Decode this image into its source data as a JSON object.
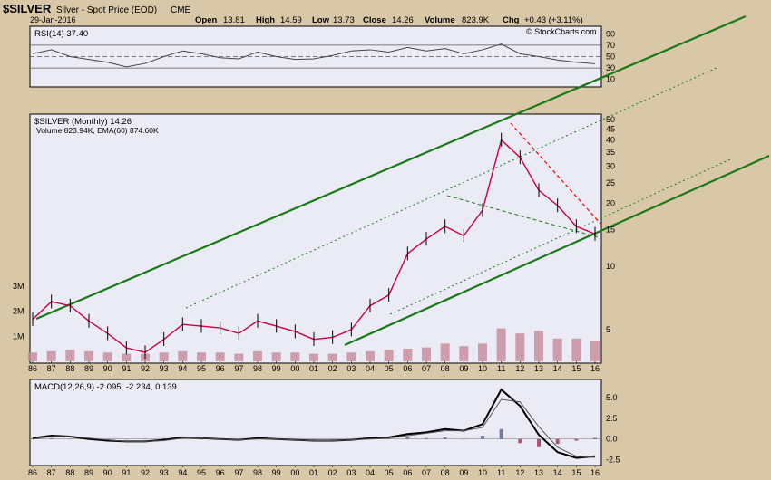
{
  "header": {
    "symbol": "$SILVER",
    "description": "Silver - Spot Price (EOD)",
    "exchange": "CME",
    "date": "29-Jan-2016",
    "open_label": "Open",
    "open": "13.81",
    "high_label": "High",
    "high": "14.59",
    "low_label": "Low",
    "low": "13.73",
    "close_label": "Close",
    "close": "14.26",
    "volume_label": "Volume",
    "volume": "823.9K",
    "chg_label": "Chg",
    "chg": "+0.43 (+3.11%)",
    "watermark": "© StockCharts.com"
  },
  "colors": {
    "panel_bg": "#ebebf5",
    "outer_bg": "#d9c8a7",
    "price_up": "#000000",
    "price_down": "#cc0044",
    "channel_green": "#1a7a1a",
    "resistance_red": "#ff0000",
    "rsi_line": "#444444",
    "macd_line": "#000000",
    "signal_line": "#555555",
    "volume_bar": "#c58a9a",
    "ema_line": "#cc3333"
  },
  "chart_data": [
    {
      "panel": "rsi",
      "type": "line",
      "title": "RSI(14) 37.40",
      "ylim": [
        0,
        100
      ],
      "yticks": [
        "90",
        "70",
        "50",
        "30",
        "10"
      ],
      "x": [
        "86",
        "87",
        "88",
        "89",
        "90",
        "91",
        "92",
        "93",
        "94",
        "95",
        "96",
        "97",
        "98",
        "99",
        "00",
        "01",
        "02",
        "03",
        "04",
        "05",
        "06",
        "07",
        "08",
        "09",
        "10",
        "11",
        "12",
        "13",
        "14",
        "15",
        "16"
      ],
      "values": [
        55,
        62,
        50,
        45,
        40,
        32,
        38,
        50,
        60,
        55,
        48,
        46,
        58,
        50,
        45,
        46,
        52,
        60,
        62,
        58,
        66,
        60,
        64,
        55,
        62,
        72,
        55,
        50,
        44,
        40,
        37.4
      ]
    },
    {
      "panel": "price",
      "type": "line",
      "title": "$SILVER (Monthly) 14.26",
      "subtitle": "Volume 823.94K, EMA(60) 874.60K",
      "scale": "log",
      "ylim": [
        3.5,
        52
      ],
      "yticks": [
        "50",
        "45",
        "40",
        "35",
        "30",
        "25",
        "20",
        "15",
        "10",
        "5"
      ],
      "volume_ticks": [
        "3M",
        "2M",
        "1M"
      ],
      "x": [
        "86",
        "87",
        "88",
        "89",
        "90",
        "91",
        "92",
        "93",
        "94",
        "95",
        "96",
        "97",
        "98",
        "99",
        "00",
        "01",
        "02",
        "03",
        "04",
        "05",
        "06",
        "07",
        "08",
        "09",
        "10",
        "11",
        "12",
        "13",
        "14",
        "15",
        "16"
      ],
      "values": [
        5.6,
        6.8,
        6.5,
        5.5,
        4.8,
        4.1,
        3.9,
        4.5,
        5.3,
        5.2,
        5.1,
        4.8,
        5.5,
        5.2,
        4.9,
        4.5,
        4.6,
        5.0,
        6.5,
        7.3,
        11.5,
        13.5,
        15.5,
        14.0,
        18.5,
        40.0,
        33.0,
        23.0,
        19.5,
        15.5,
        14.26
      ],
      "volume_values": [
        0.35,
        0.4,
        0.45,
        0.4,
        0.35,
        0.3,
        0.3,
        0.35,
        0.4,
        0.35,
        0.35,
        0.3,
        0.4,
        0.35,
        0.35,
        0.3,
        0.3,
        0.35,
        0.4,
        0.45,
        0.5,
        0.55,
        0.7,
        0.6,
        0.7,
        1.3,
        1.1,
        1.2,
        0.9,
        0.9,
        0.82
      ]
    },
    {
      "panel": "macd",
      "type": "line",
      "title": "MACD(12,26,9) -2.095, -2.234, 0.139",
      "ylim": [
        -3,
        7
      ],
      "yticks": [
        "5.0",
        "2.5",
        "0.0",
        "-2.5"
      ],
      "x": [
        "86",
        "87",
        "88",
        "89",
        "90",
        "91",
        "92",
        "93",
        "94",
        "95",
        "96",
        "97",
        "98",
        "99",
        "00",
        "01",
        "02",
        "03",
        "04",
        "05",
        "06",
        "07",
        "08",
        "09",
        "10",
        "11",
        "12",
        "13",
        "14",
        "15",
        "16"
      ],
      "series": [
        {
          "values": [
            0.1,
            0.4,
            0.3,
            0.0,
            -0.2,
            -0.3,
            -0.3,
            -0.1,
            0.2,
            0.1,
            0.0,
            -0.1,
            0.1,
            0.0,
            -0.1,
            -0.2,
            -0.2,
            -0.1,
            0.1,
            0.2,
            0.6,
            0.8,
            1.2,
            1.0,
            1.8,
            6.0,
            4.0,
            0.5,
            -1.6,
            -2.3,
            -2.095
          ]
        },
        {
          "values": [
            0.0,
            0.3,
            0.3,
            0.1,
            -0.1,
            -0.3,
            -0.3,
            -0.2,
            0.1,
            0.1,
            0.0,
            -0.1,
            0.0,
            0.0,
            -0.1,
            -0.2,
            -0.2,
            -0.1,
            0.0,
            0.1,
            0.4,
            0.7,
            1.0,
            1.0,
            1.4,
            4.8,
            4.5,
            1.5,
            -1.0,
            -2.1,
            -2.234
          ]
        }
      ],
      "histogram": [
        0.1,
        0.1,
        0.0,
        -0.1,
        -0.1,
        0.0,
        0.0,
        0.1,
        0.1,
        0.0,
        0.0,
        0.0,
        0.1,
        0.0,
        0.0,
        0.0,
        0.0,
        0.0,
        0.1,
        0.1,
        0.2,
        0.1,
        0.2,
        0.0,
        0.4,
        1.2,
        -0.5,
        -1.0,
        -0.6,
        -0.2,
        0.139
      ]
    }
  ]
}
